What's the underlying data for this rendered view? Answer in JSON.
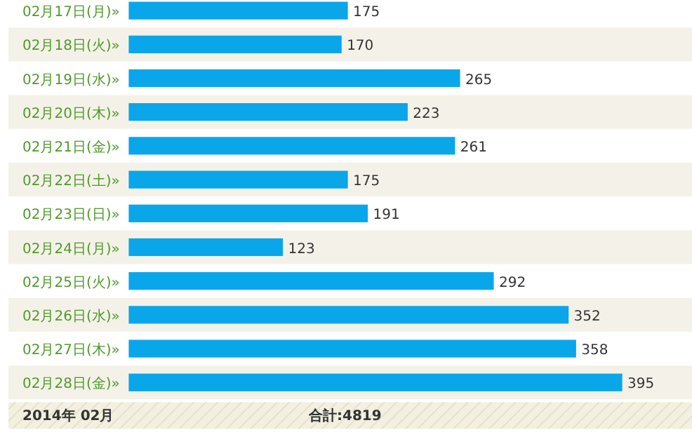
{
  "chart_data": {
    "type": "bar",
    "orientation": "horizontal",
    "data_labels": true,
    "categories": [
      "02月17日(月)»",
      "02月18日(火)»",
      "02月19日(水)»",
      "02月20日(木)»",
      "02月21日(金)»",
      "02月22日(土)»",
      "02月23日(日)»",
      "02月24日(月)»",
      "02月25日(火)»",
      "02月26日(水)»",
      "02月27日(木)»",
      "02月28日(金)»"
    ],
    "values": [
      175,
      170,
      265,
      223,
      261,
      175,
      191,
      123,
      292,
      352,
      358,
      395
    ],
    "color": "#0aa6ea",
    "annotations": [
      "2014年 02月",
      "合計:4819"
    ]
  }
}
